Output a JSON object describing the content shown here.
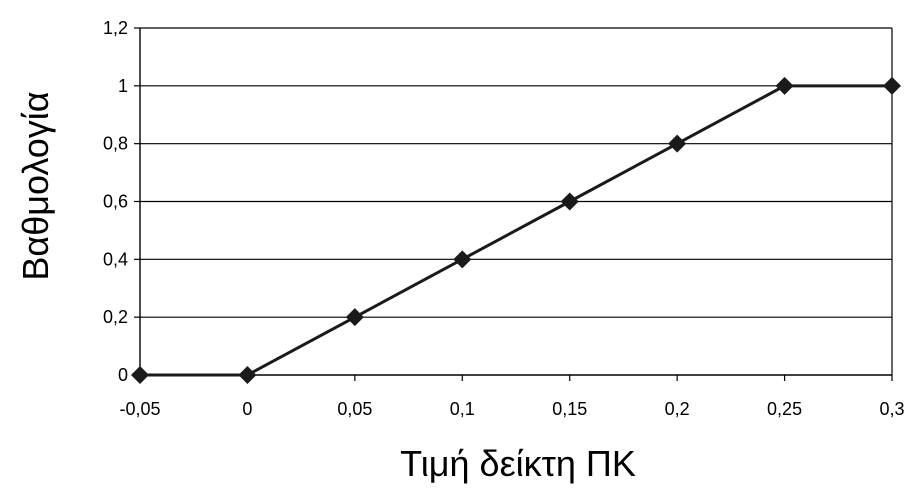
{
  "chart_data": {
    "type": "line",
    "title": "",
    "xlabel": "Τιμή δείκτη ΠΚ",
    "ylabel": "Βαθμολογία",
    "x": [
      -0.05,
      0,
      0.05,
      0.1,
      0.15,
      0.2,
      0.25,
      0.3
    ],
    "series": [
      {
        "values": [
          0,
          0,
          0.2,
          0.4,
          0.6,
          0.8,
          1,
          1
        ]
      }
    ],
    "xlim": [
      -0.05,
      0.3
    ],
    "ylim": [
      0,
      1.2
    ],
    "x_ticks": [
      "-0,05",
      "0",
      "0,05",
      "0,1",
      "0,15",
      "0,2",
      "0,25",
      "0,3"
    ],
    "y_ticks": [
      "0",
      "0,2",
      "0,4",
      "0,6",
      "0,8",
      "1",
      "1,2"
    ],
    "y_tick_values": [
      0,
      0.2,
      0.4,
      0.6,
      0.8,
      1,
      1.2
    ],
    "grid": "horizontal",
    "legend": "none",
    "marker": "diamond",
    "line_color": "#1a1a1a",
    "marker_color": "#1a1a1a",
    "gridline_color": "#000000"
  }
}
